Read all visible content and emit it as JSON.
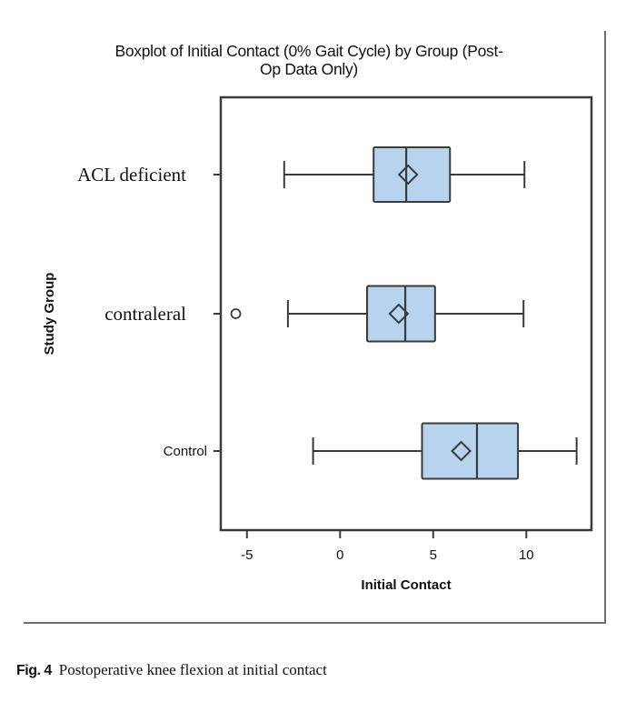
{
  "chart_data": {
    "type": "boxplot",
    "orientation": "horizontal",
    "title": "Boxplot of Initial Contact (0% Gait Cycle) by Group (Post-Op Data Only)",
    "title_lines": [
      "Boxplot of Initial Contact (0% Gait Cycle) by Group (Post-",
      "Op Data Only)"
    ],
    "xlabel": "Initial Contact",
    "ylabel": "Study Group",
    "xlim": [
      -6.3,
      13.5
    ],
    "xticks": [
      -5,
      0,
      5,
      10
    ],
    "xtick_labels": [
      "-5",
      "0",
      "5",
      "10"
    ],
    "grid": false,
    "box_color": "#b8d3ee",
    "line_color": "#3a3a3a",
    "categories": [
      "ACL deficient",
      "contraleral",
      "Control"
    ],
    "series": [
      {
        "name": "ACL deficient",
        "whisker_low": -3.0,
        "q1": 1.8,
        "median": 3.55,
        "mean": 3.65,
        "q3": 5.9,
        "whisker_high": 9.9,
        "outliers": []
      },
      {
        "name": "contraleral",
        "whisker_low": -2.8,
        "q1": 1.45,
        "median": 3.5,
        "mean": 3.15,
        "q3": 5.1,
        "whisker_high": 9.85,
        "outliers": [
          -5.6
        ]
      },
      {
        "name": "Control",
        "whisker_low": -1.45,
        "q1": 4.4,
        "median": 7.35,
        "mean": 6.5,
        "q3": 9.55,
        "whisker_high": 12.7,
        "outliers": []
      }
    ]
  },
  "caption": {
    "label": "Fig. 4",
    "text": "Postoperative knee flexion at initial contact"
  }
}
